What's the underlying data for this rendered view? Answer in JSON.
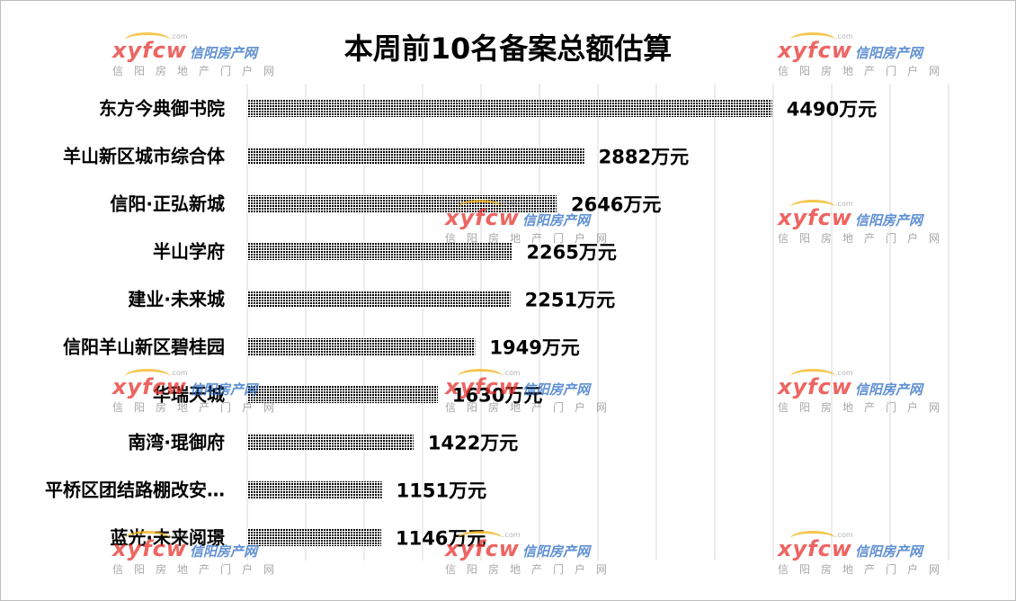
{
  "chart_data": {
    "type": "bar",
    "orientation": "horizontal",
    "title": "本周前10名备案总额估算",
    "categories": [
      "东方今典御书院",
      "羊山新区城市综合体",
      "信阳·正弘新城",
      "半山学府",
      "建业·未来城",
      "信阳羊山新区碧桂园",
      "华瑞天城",
      "南湾·琨御府",
      "平桥区团结路棚改安…",
      "蓝光·未来阅璟"
    ],
    "values": [
      4490,
      2882,
      2646,
      2265,
      2251,
      1949,
      1630,
      1422,
      1151,
      1146
    ],
    "value_labels": [
      "4490万元",
      "2882万元",
      "2646万元",
      "2265万元",
      "2251万元",
      "1949万元",
      "1630万元",
      "1422万元",
      "1151万元",
      "1146万元"
    ],
    "unit": "万元",
    "xlim": [
      0,
      6000
    ],
    "grid": true,
    "bar_color": "#000000"
  },
  "watermark": {
    "logo": "xyfcw",
    "logo_side": "信阳房产网",
    "dotcom": ".com",
    "sub": "信阳房地产门户网"
  }
}
